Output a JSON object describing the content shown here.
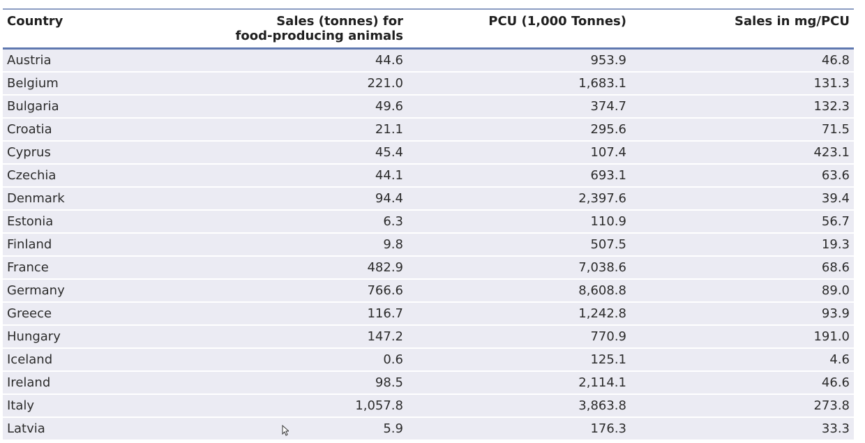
{
  "table": {
    "headers": {
      "country": "Country",
      "sales_line1": "Sales (tonnes) for",
      "sales_line2": "food-producing animals",
      "pcu": "PCU (1,000 Tonnes)",
      "mgpcu": "Sales in mg/PCU"
    },
    "rows": [
      {
        "country": "Austria",
        "sales": "44.6",
        "pcu": "953.9",
        "mgpcu": "46.8"
      },
      {
        "country": "Belgium",
        "sales": "221.0",
        "pcu": "1,683.1",
        "mgpcu": "131.3"
      },
      {
        "country": "Bulgaria",
        "sales": "49.6",
        "pcu": "374.7",
        "mgpcu": "132.3"
      },
      {
        "country": "Croatia",
        "sales": "21.1",
        "pcu": "295.6",
        "mgpcu": "71.5"
      },
      {
        "country": "Cyprus",
        "sales": "45.4",
        "pcu": "107.4",
        "mgpcu": "423.1"
      },
      {
        "country": "Czechia",
        "sales": "44.1",
        "pcu": "693.1",
        "mgpcu": "63.6"
      },
      {
        "country": "Denmark",
        "sales": "94.4",
        "pcu": "2,397.6",
        "mgpcu": "39.4"
      },
      {
        "country": "Estonia",
        "sales": "6.3",
        "pcu": "110.9",
        "mgpcu": "56.7"
      },
      {
        "country": "Finland",
        "sales": "9.8",
        "pcu": "507.5",
        "mgpcu": "19.3"
      },
      {
        "country": "France",
        "sales": "482.9",
        "pcu": "7,038.6",
        "mgpcu": "68.6"
      },
      {
        "country": "Germany",
        "sales": "766.6",
        "pcu": "8,608.8",
        "mgpcu": "89.0"
      },
      {
        "country": "Greece",
        "sales": "116.7",
        "pcu": "1,242.8",
        "mgpcu": "93.9"
      },
      {
        "country": "Hungary",
        "sales": "147.2",
        "pcu": "770.9",
        "mgpcu": "191.0"
      },
      {
        "country": "Iceland",
        "sales": "0.6",
        "pcu": "125.1",
        "mgpcu": "4.6"
      },
      {
        "country": "Ireland",
        "sales": "98.5",
        "pcu": "2,114.1",
        "mgpcu": "46.6"
      },
      {
        "country": "Italy",
        "sales": "1,057.8",
        "pcu": "3,863.8",
        "mgpcu": "273.8"
      },
      {
        "country": "Latvia",
        "sales": "5.9",
        "pcu": "176.3",
        "mgpcu": "33.3"
      }
    ]
  },
  "cursor": {
    "icon": "mouse-pointer-icon"
  }
}
